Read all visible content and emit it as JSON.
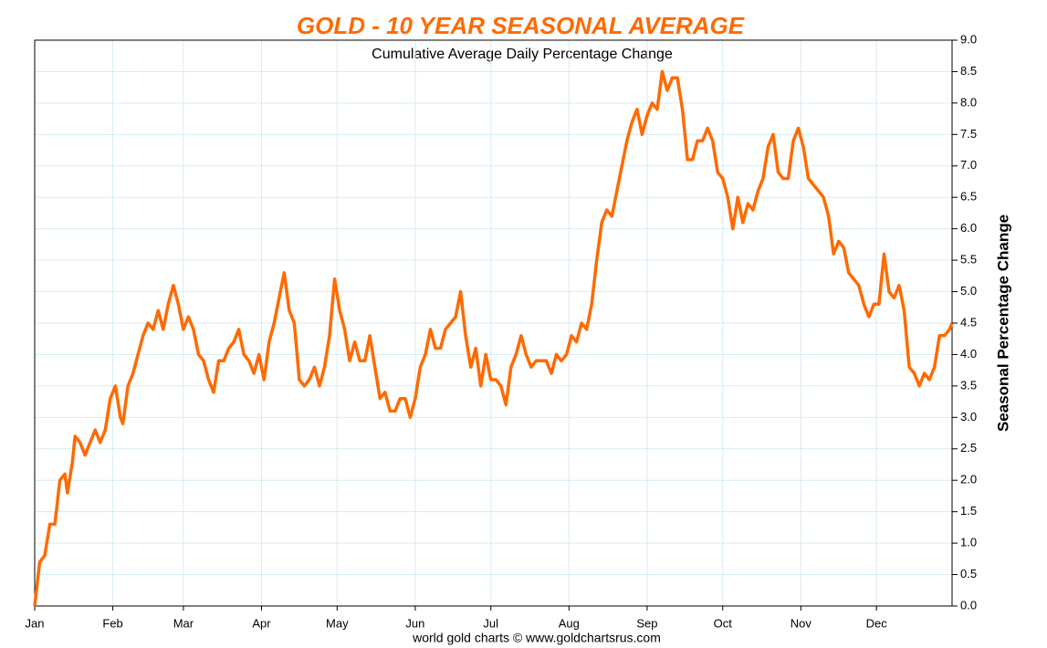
{
  "chart_data": {
    "type": "line",
    "title": "GOLD - 10 YEAR SEASONAL AVERAGE",
    "subtitle": "Cumulative Average Daily Percentage Change",
    "y_label": "Seasonal Percentage Change",
    "footer": "world gold charts © www.goldchartsrus.com",
    "color": "#ff6a00",
    "grid": true,
    "y_axis_side": "right",
    "xlim": [
      1,
      365
    ],
    "xticks": [
      {
        "value": 1,
        "label": "Jan"
      },
      {
        "value": 32,
        "label": "Feb"
      },
      {
        "value": 60,
        "label": "Mar"
      },
      {
        "value": 91,
        "label": "Apr"
      },
      {
        "value": 121,
        "label": "May"
      },
      {
        "value": 152,
        "label": "Jun"
      },
      {
        "value": 182,
        "label": "Jul"
      },
      {
        "value": 213,
        "label": "Aug"
      },
      {
        "value": 244,
        "label": "Sep"
      },
      {
        "value": 274,
        "label": "Oct"
      },
      {
        "value": 305,
        "label": "Nov"
      },
      {
        "value": 335,
        "label": "Dec"
      }
    ],
    "ylim": [
      0,
      9
    ],
    "yticks": [
      {
        "value": 0,
        "label": "0.0"
      },
      0.5,
      {
        "value": 1,
        "label": "1.0"
      },
      1.5,
      {
        "value": 2,
        "label": "2.0"
      },
      2.5,
      {
        "value": 3,
        "label": "3.0"
      },
      3.5,
      {
        "value": 4,
        "label": "4.0"
      },
      4.5,
      {
        "value": 5,
        "label": "5.0"
      },
      5.5,
      {
        "value": 6,
        "label": "6.0"
      },
      6.5,
      {
        "value": 7,
        "label": "7.0"
      },
      7.5,
      {
        "value": 8,
        "label": "8.0"
      },
      8.5,
      {
        "value": 9,
        "label": "9.0"
      }
    ],
    "x": [
      1,
      3,
      5,
      7,
      9,
      11,
      13,
      14,
      16,
      17,
      19,
      21,
      23,
      25,
      27,
      29,
      31,
      33,
      35,
      36,
      38,
      40,
      42,
      44,
      46,
      48,
      50,
      52,
      54,
      56,
      58,
      60,
      62,
      64,
      66,
      68,
      70,
      72,
      74,
      76,
      78,
      80,
      82,
      84,
      86,
      88,
      90,
      92,
      94,
      96,
      98,
      100,
      102,
      104,
      106,
      108,
      110,
      112,
      114,
      116,
      118,
      120,
      122,
      124,
      126,
      128,
      130,
      132,
      134,
      136,
      138,
      140,
      142,
      144,
      146,
      148,
      150,
      152,
      154,
      156,
      158,
      160,
      162,
      164,
      166,
      168,
      170,
      172,
      174,
      176,
      178,
      180,
      182,
      184,
      186,
      188,
      190,
      192,
      194,
      196,
      198,
      200,
      202,
      204,
      206,
      208,
      210,
      212,
      214,
      216,
      218,
      220,
      222,
      224,
      226,
      228,
      230,
      232,
      234,
      236,
      238,
      240,
      242,
      244,
      246,
      248,
      250,
      252,
      254,
      256,
      258,
      260,
      262,
      264,
      266,
      268,
      270,
      272,
      274,
      276,
      278,
      280,
      282,
      284,
      286,
      288,
      290,
      292,
      294,
      296,
      298,
      300,
      302,
      304,
      306,
      308,
      310,
      312,
      314,
      316,
      318,
      320,
      322,
      324,
      326,
      328,
      330,
      332,
      334,
      336,
      338,
      340,
      342,
      344,
      346,
      348,
      350,
      352,
      354,
      356,
      358,
      360,
      362,
      364,
      365
    ],
    "values": [
      0,
      0.7,
      0.8,
      1.3,
      1.3,
      2.0,
      2.1,
      1.8,
      2.3,
      2.7,
      2.6,
      2.4,
      2.6,
      2.8,
      2.6,
      2.8,
      3.3,
      3.5,
      3.0,
      2.9,
      3.5,
      3.7,
      4.0,
      4.3,
      4.5,
      4.4,
      4.7,
      4.4,
      4.8,
      5.1,
      4.8,
      4.4,
      4.6,
      4.4,
      4.0,
      3.9,
      3.6,
      3.4,
      3.9,
      3.9,
      4.1,
      4.2,
      4.4,
      4.0,
      3.9,
      3.7,
      4.0,
      3.6,
      4.2,
      4.5,
      4.9,
      5.3,
      4.7,
      4.5,
      3.6,
      3.5,
      3.6,
      3.8,
      3.5,
      3.8,
      4.3,
      5.2,
      4.7,
      4.4,
      3.9,
      4.2,
      3.9,
      3.9,
      4.3,
      3.8,
      3.3,
      3.4,
      3.1,
      3.1,
      3.3,
      3.3,
      3.0,
      3.3,
      3.8,
      4.0,
      4.4,
      4.1,
      4.1,
      4.4,
      4.5,
      4.6,
      5.0,
      4.3,
      3.8,
      4.1,
      3.5,
      4.0,
      3.6,
      3.6,
      3.5,
      3.2,
      3.8,
      4.0,
      4.3,
      4.0,
      3.8,
      3.9,
      3.9,
      3.9,
      3.7,
      4.0,
      3.9,
      4.0,
      4.3,
      4.2,
      4.5,
      4.4,
      4.8,
      5.5,
      6.1,
      6.3,
      6.2,
      6.6,
      7.0,
      7.4,
      7.7,
      7.9,
      7.5,
      7.8,
      8.0,
      7.9,
      8.5,
      8.2,
      8.4,
      8.4,
      7.9,
      7.1,
      7.1,
      7.4,
      7.4,
      7.6,
      7.4,
      6.9,
      6.8,
      6.5,
      6.0,
      6.5,
      6.1,
      6.4,
      6.3,
      6.6,
      6.8,
      7.3,
      7.5,
      6.9,
      6.8,
      6.8,
      7.4,
      7.6,
      7.3,
      6.8,
      6.7,
      6.6,
      6.5,
      6.2,
      5.6,
      5.8,
      5.7,
      5.3,
      5.2,
      5.1,
      4.8,
      4.6,
      4.8,
      4.8,
      5.6,
      5.0,
      4.9,
      5.1,
      4.7,
      3.8,
      3.7,
      3.5,
      3.7,
      3.6,
      3.8,
      4.3,
      4.3,
      4.4,
      4.5
    ]
  }
}
